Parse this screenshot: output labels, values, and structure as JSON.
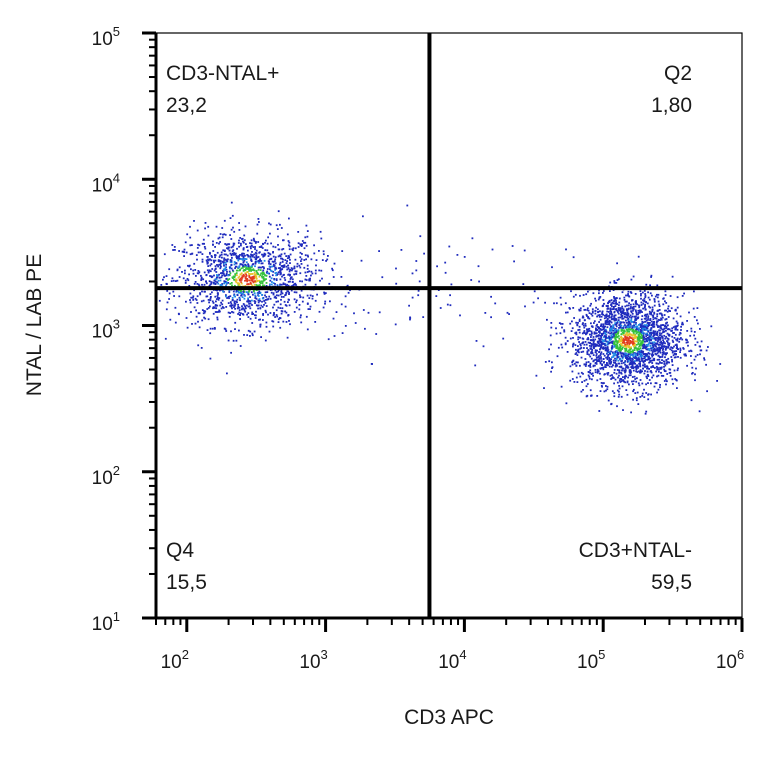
{
  "chart_data": {
    "type": "scatter",
    "title": "",
    "xlabel": "CD3 APC",
    "ylabel": "NTAL / LAB PE",
    "x_scale": "log",
    "y_scale": "log",
    "xlim": [
      60,
      1000000
    ],
    "ylim": [
      10,
      100000
    ],
    "x_ticks": [
      {
        "base": "10",
        "exp": "2",
        "value": 100
      },
      {
        "base": "10",
        "exp": "3",
        "value": 1000
      },
      {
        "base": "10",
        "exp": "4",
        "value": 10000
      },
      {
        "base": "10",
        "exp": "5",
        "value": 100000
      },
      {
        "base": "10",
        "exp": "6",
        "value": 1000000
      }
    ],
    "y_ticks": [
      {
        "base": "10",
        "exp": "1",
        "value": 10
      },
      {
        "base": "10",
        "exp": "2",
        "value": 100
      },
      {
        "base": "10",
        "exp": "3",
        "value": 1000
      },
      {
        "base": "10",
        "exp": "4",
        "value": 10000
      },
      {
        "base": "10",
        "exp": "5",
        "value": 100000
      }
    ],
    "gate": {
      "x": 5600,
      "y": 1800
    },
    "quadrants": [
      {
        "name": "CD3-NTAL+",
        "percent": "23,2",
        "position": "top-left"
      },
      {
        "name": "Q2",
        "percent": "1,80",
        "position": "top-right"
      },
      {
        "name": "Q4",
        "percent": "15,5",
        "position": "bottom-left"
      },
      {
        "name": "CD3+NTAL-",
        "percent": "59,5",
        "position": "bottom-right"
      }
    ],
    "populations": [
      {
        "x_center": 270,
        "y_center": 2100,
        "x_spread_log": 0.26,
        "y_spread_log": 0.16,
        "events": 1500
      },
      {
        "x_center": 150000,
        "y_center": 800,
        "x_spread_log": 0.2,
        "y_spread_log": 0.16,
        "events": 2300
      }
    ],
    "density_colors": [
      "#1f2bbd",
      "#1e88e5",
      "#35c23c",
      "#e6c229",
      "#e23b1e"
    ],
    "grid": false,
    "legend": "none"
  }
}
